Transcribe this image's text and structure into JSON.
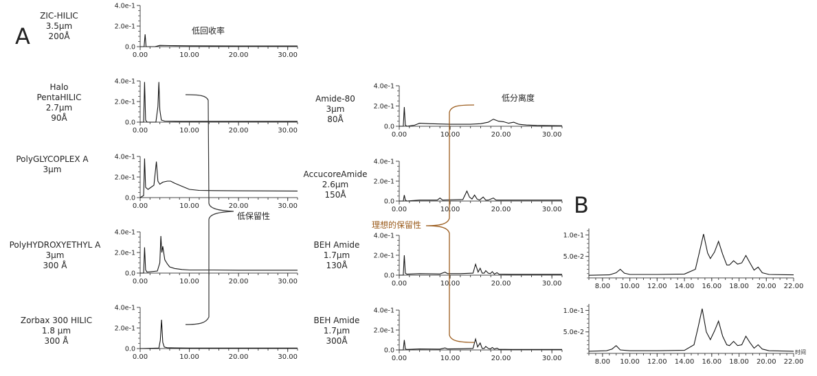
{
  "panel_letters": [
    "A",
    "B"
  ],
  "sample_labels": [
    [
      "ZIC-HILIC",
      "3.5μm",
      "200Å"
    ],
    [
      "Halo",
      "PentaHILIC",
      "2.7μm",
      "90Å"
    ],
    [
      "PolyGLYCOPLEX A",
      "3μm"
    ],
    [
      "PolyHYDROXYETHYL A",
      "3μm",
      "300 Å"
    ],
    [
      "Zorbax 300 HILIC",
      "1.8 μm",
      "300 Å"
    ],
    [
      "Amide-80",
      "3μm",
      "80Å"
    ],
    [
      "AccucoreAmide",
      "2.6μm",
      "150Å"
    ],
    [
      "BEH Amide",
      "1.7μm",
      "130Å"
    ],
    [
      "BEH Amide",
      "1.7μm",
      "300Å"
    ]
  ],
  "annotations": {
    "low_recovery": "低回收率",
    "low_separation": "低分离度",
    "low_retention": "低保留性",
    "ideal_retention": "理想的保留性",
    "time_unit": "时间"
  },
  "colors": {
    "trace": "#111111",
    "bracket_black": "#333333",
    "bracket_brown": "#9a5a1a"
  },
  "chart_data": [
    {
      "type": "line",
      "panel": "A",
      "column": "ZIC-HILIC 3.5μm 200Å",
      "xlim": [
        0,
        32
      ],
      "ylim": [
        0,
        0.4
      ],
      "x_ticks": [
        "0.00",
        "10.00",
        "20.00",
        "30.00"
      ],
      "y_ticks": [
        "0.0",
        "2.0e-1",
        "4.0e-1"
      ],
      "x": [
        0,
        0.8,
        1.0,
        1.2,
        1.5,
        3.0,
        4.0,
        6.0,
        10,
        20,
        32
      ],
      "y": [
        0,
        0,
        0.12,
        0,
        0,
        0,
        0.012,
        0.01,
        0.008,
        0.006,
        0.006
      ]
    },
    {
      "type": "line",
      "panel": "A",
      "column": "Halo PentaHILIC 2.7μm 90Å",
      "xlim": [
        0,
        32
      ],
      "ylim": [
        0,
        0.4
      ],
      "x_ticks": [
        "0.00",
        "10.00",
        "20.00",
        "30.00"
      ],
      "y_ticks": [
        "0.0",
        "2.0e-1",
        "4.0e-1"
      ],
      "x": [
        0,
        0.7,
        0.9,
        1.1,
        1.4,
        3.2,
        3.6,
        3.8,
        4.0,
        4.3,
        5.0,
        8,
        15,
        32
      ],
      "y": [
        0,
        0,
        0.39,
        0.02,
        0,
        0,
        0.15,
        0.39,
        0.12,
        0.02,
        0.01,
        0.008,
        0.008,
        0.008
      ]
    },
    {
      "type": "line",
      "panel": "A",
      "column": "PolyGLYCOPLEX A 3μm",
      "xlim": [
        0,
        32
      ],
      "ylim": [
        0,
        0.4
      ],
      "x_ticks": [
        "0.00",
        "10.00",
        "20.00",
        "30.00"
      ],
      "y_ticks": [
        "0.0",
        "2.0e-1",
        "4.0e-1"
      ],
      "x": [
        0,
        0.7,
        0.9,
        1.1,
        1.6,
        2.2,
        2.8,
        3.3,
        3.6,
        4.0,
        4.6,
        5.5,
        6.2,
        7.0,
        8.5,
        10,
        12,
        15,
        20,
        32
      ],
      "y": [
        0,
        0.02,
        0.38,
        0.1,
        0.08,
        0.1,
        0.12,
        0.35,
        0.16,
        0.13,
        0.15,
        0.16,
        0.16,
        0.14,
        0.11,
        0.08,
        0.07,
        0.068,
        0.066,
        0.064
      ]
    },
    {
      "type": "line",
      "panel": "A",
      "column": "PolyHYDROXYETHYL A 3μm 300 Å",
      "xlim": [
        0,
        32
      ],
      "ylim": [
        0,
        0.4
      ],
      "x_ticks": [
        "0.00",
        "10.00",
        "20.00",
        "30.00"
      ],
      "y_ticks": [
        "0.0",
        "2.0e-1",
        "4.0e-1"
      ],
      "x": [
        0,
        0.7,
        0.9,
        1.1,
        1.4,
        3.5,
        4.0,
        4.2,
        4.4,
        4.6,
        5.0,
        5.5,
        6.0,
        7.0,
        8.5,
        10,
        15,
        20,
        32
      ],
      "y": [
        0,
        0,
        0.25,
        0.03,
        0.01,
        0.02,
        0.1,
        0.36,
        0.2,
        0.26,
        0.13,
        0.09,
        0.06,
        0.045,
        0.035,
        0.03,
        0.03,
        0.028,
        0.028
      ]
    },
    {
      "type": "line",
      "panel": "A",
      "column": "Zorbax 300 HILIC 1.8 μm 300 Å",
      "xlim": [
        0,
        32
      ],
      "ylim": [
        0,
        0.4
      ],
      "x_ticks": [
        "0.00",
        "10.00",
        "20.00",
        "30.00"
      ],
      "y_ticks": [
        "0.0",
        "2.0e-1",
        "4.0e-1"
      ],
      "x": [
        0,
        3.8,
        4.1,
        4.35,
        4.6,
        4.9,
        5.5,
        7,
        10,
        20,
        32
      ],
      "y": [
        0,
        0.005,
        0.08,
        0.28,
        0.06,
        0.015,
        0.008,
        0.006,
        0.005,
        0.005,
        0.005
      ]
    },
    {
      "type": "line",
      "panel": "A",
      "column": "Amide-80 3μm 80Å",
      "xlim": [
        0,
        32
      ],
      "ylim": [
        0,
        0.4
      ],
      "x_ticks": [
        "0.00",
        "10.00",
        "20.00",
        "30.00"
      ],
      "y_ticks": [
        "0.0",
        "2.0e-1",
        "4.0e-1"
      ],
      "x": [
        0,
        0.8,
        1.0,
        1.2,
        1.5,
        3.0,
        4.0,
        6,
        10,
        14,
        16,
        17.5,
        18.5,
        19.5,
        20.5,
        21.5,
        22.5,
        23.5,
        25,
        27,
        32
      ],
      "y": [
        0,
        0,
        0.19,
        0.01,
        0,
        0.01,
        0.03,
        0.025,
        0.02,
        0.02,
        0.025,
        0.04,
        0.07,
        0.05,
        0.045,
        0.03,
        0.04,
        0.02,
        0.012,
        0.008,
        0.005
      ]
    },
    {
      "type": "line",
      "panel": "A",
      "column": "AccucoreAmide 2.6μm 150Å",
      "xlim": [
        0,
        32
      ],
      "ylim": [
        0,
        0.4
      ],
      "x_ticks": [
        "0.00",
        "10.00",
        "20.00",
        "30.00"
      ],
      "y_ticks": [
        "0.0",
        "2.0e-1",
        "4.0e-1"
      ],
      "x": [
        0,
        0.8,
        1.0,
        1.2,
        1.5,
        4,
        7.5,
        8.0,
        8.5,
        10,
        12.5,
        13.3,
        13.8,
        14.3,
        14.8,
        15.3,
        15.8,
        16.5,
        17.0,
        17.5,
        18.5,
        19.0,
        19.5,
        22,
        32
      ],
      "y": [
        0,
        0,
        0.06,
        0.01,
        0,
        0.01,
        0.01,
        0.03,
        0.01,
        0.012,
        0.015,
        0.1,
        0.04,
        0.02,
        0.06,
        0.02,
        0.01,
        0.04,
        0.01,
        0.01,
        0.03,
        0.01,
        0.01,
        0.01,
        0.01
      ]
    },
    {
      "type": "line",
      "panel": "A",
      "column": "BEH Amide 1.7μm 130Å",
      "xlim": [
        0,
        32
      ],
      "ylim": [
        0,
        0.4
      ],
      "x_ticks": [
        "0.00",
        "10.00",
        "20.00",
        "30.00"
      ],
      "y_ticks": [
        "0.0",
        "2.0e-1",
        "4.0e-1"
      ],
      "x": [
        0,
        0.8,
        1.0,
        1.2,
        1.5,
        4,
        8,
        9.0,
        9.5,
        12,
        14.5,
        15.0,
        15.5,
        15.9,
        16.3,
        16.7,
        17.0,
        17.5,
        17.9,
        18.3,
        18.7,
        19.2,
        19.6,
        22,
        32
      ],
      "y": [
        0,
        0,
        0.2,
        0.02,
        0.01,
        0.015,
        0.012,
        0.03,
        0.015,
        0.015,
        0.02,
        0.11,
        0.03,
        0.07,
        0.02,
        0.02,
        0.045,
        0.02,
        0.015,
        0.035,
        0.01,
        0.025,
        0.01,
        0.008,
        0.008
      ]
    },
    {
      "type": "line",
      "panel": "A",
      "column": "BEH Amide 1.7μm 300Å",
      "xlim": [
        0,
        32
      ],
      "ylim": [
        0,
        0.4
      ],
      "x_ticks": [
        "0.00",
        "10.00",
        "20.00",
        "30.00"
      ],
      "y_ticks": [
        "0.0",
        "2.0e-1",
        "4.0e-1"
      ],
      "x": [
        0,
        0.8,
        1.0,
        1.2,
        1.5,
        4,
        8,
        9.0,
        9.5,
        12,
        14.5,
        15.0,
        15.4,
        15.9,
        16.3,
        16.7,
        17.0,
        17.5,
        17.9,
        18.3,
        18.7,
        19.2,
        19.6,
        22,
        32
      ],
      "y": [
        0,
        0,
        0.1,
        0.01,
        0.005,
        0.01,
        0.008,
        0.02,
        0.01,
        0.012,
        0.015,
        0.11,
        0.03,
        0.07,
        0.015,
        0.015,
        0.035,
        0.015,
        0.01,
        0.025,
        0.008,
        0.018,
        0.006,
        0.005,
        0.005
      ]
    },
    {
      "type": "line",
      "panel": "B",
      "column": "BEH Amide 1.7 μm 130Å",
      "xlim": [
        7,
        22
      ],
      "ylim": [
        0,
        0.115
      ],
      "x_ticks": [
        "8.00",
        "10.00",
        "12.00",
        "14.00",
        "16.00",
        "18.00",
        "20.00",
        "22.00"
      ],
      "y_ticks": [
        "5.0e-2",
        "1.0e-1"
      ],
      "x": [
        7,
        8.5,
        9.0,
        9.3,
        9.6,
        10.0,
        12,
        14,
        14.8,
        15.1,
        15.4,
        15.7,
        15.9,
        16.2,
        16.5,
        16.8,
        17.1,
        17.3,
        17.6,
        17.9,
        18.2,
        18.5,
        18.8,
        19.1,
        19.4,
        19.7,
        20.2,
        22
      ],
      "y": [
        0.006,
        0.007,
        0.012,
        0.02,
        0.011,
        0.008,
        0.008,
        0.009,
        0.02,
        0.06,
        0.102,
        0.058,
        0.045,
        0.06,
        0.085,
        0.055,
        0.03,
        0.03,
        0.04,
        0.032,
        0.035,
        0.052,
        0.035,
        0.018,
        0.025,
        0.012,
        0.008,
        0.007
      ]
    },
    {
      "type": "line",
      "panel": "B",
      "column": "BEH Amide 1.7 μm 300Å",
      "xlim": [
        7,
        22
      ],
      "ylim": [
        0,
        0.115
      ],
      "x_ticks": [
        "8.00",
        "10.00",
        "12.00",
        "14.00",
        "16.00",
        "18.00",
        "20.00",
        "22.00"
      ],
      "y_ticks": [
        "5.0e-2",
        "1.0e-1"
      ],
      "x": [
        7,
        8.3,
        8.7,
        9.0,
        9.3,
        10.0,
        12,
        14,
        14.7,
        15.0,
        15.3,
        15.6,
        15.9,
        16.2,
        16.5,
        16.8,
        17.1,
        17.3,
        17.6,
        17.9,
        18.2,
        18.5,
        18.8,
        19.1,
        19.4,
        19.7,
        20.2,
        22
      ],
      "y": [
        0.005,
        0.006,
        0.01,
        0.018,
        0.008,
        0.006,
        0.006,
        0.007,
        0.02,
        0.06,
        0.104,
        0.05,
        0.032,
        0.052,
        0.075,
        0.04,
        0.02,
        0.018,
        0.028,
        0.018,
        0.02,
        0.04,
        0.025,
        0.012,
        0.02,
        0.01,
        0.006,
        0.005
      ]
    }
  ]
}
